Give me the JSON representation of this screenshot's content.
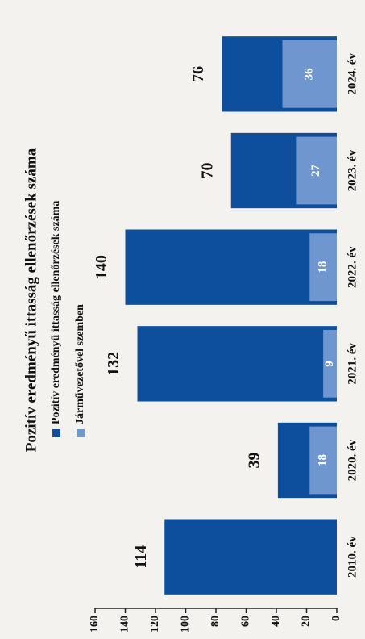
{
  "chart_data": {
    "type": "bar",
    "title": "Pozitív eredményű ittasság ellenőrzések száma",
    "categories": [
      "2010. év",
      "2020. év",
      "2021. év",
      "2022. év",
      "2023. év",
      "2024. év"
    ],
    "series": [
      {
        "name": "Pozitív eredményű ittasság ellenőrzések száma",
        "color": "#0d4f9c",
        "values": [
          114,
          39,
          132,
          140,
          70,
          76
        ]
      },
      {
        "name": "Járművezetővel szemben",
        "color": "#6f96cf",
        "values": [
          null,
          18,
          9,
          18,
          27,
          36
        ]
      }
    ],
    "ylim": [
      0,
      160
    ],
    "yticks": [
      0,
      20,
      40,
      60,
      80,
      100,
      120,
      140,
      160
    ]
  }
}
